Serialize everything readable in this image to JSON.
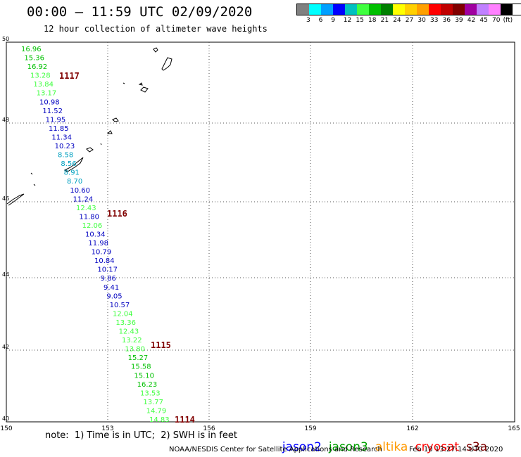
{
  "header": {
    "title": "00:00 – 11:59 UTC 02/09/2020",
    "subtitle": "12 hour collection of altimeter wave heights"
  },
  "legend": {
    "colors": [
      "#808080",
      "#00ffff",
      "#00a0ff",
      "#0000ff",
      "#00c0c0",
      "#40ff40",
      "#00c000",
      "#008000",
      "#ffff00",
      "#ffd000",
      "#ffa000",
      "#ff0000",
      "#c00000",
      "#800000",
      "#a000a0",
      "#c080ff",
      "#ff80ff",
      "#000000"
    ],
    "labels": [
      "3",
      "6",
      "9",
      "12",
      "15",
      "18",
      "21",
      "24",
      "27",
      "30",
      "33",
      "36",
      "39",
      "42",
      "45",
      "70",
      "(ft)"
    ]
  },
  "map": {
    "lon_ticks": [
      "150",
      "153",
      "156",
      "159",
      "162",
      "165"
    ],
    "lat_ticks": [
      "50",
      "48",
      "46",
      "44",
      "42",
      "40"
    ],
    "track_labels": [
      "1117",
      "1116",
      "1115",
      "1114"
    ],
    "wave_heights": [
      {
        "v": "16.96",
        "c": "#00c000"
      },
      {
        "v": "15.36",
        "c": "#00c000"
      },
      {
        "v": "16.92",
        "c": "#00c000"
      },
      {
        "v": "13.28",
        "c": "#40ff40"
      },
      {
        "v": "13.84",
        "c": "#40ff40"
      },
      {
        "v": "13.17",
        "c": "#40ff40"
      },
      {
        "v": "10.98",
        "c": "#0000c0"
      },
      {
        "v": "11.52",
        "c": "#0000c0"
      },
      {
        "v": "11.95",
        "c": "#0000c0"
      },
      {
        "v": "11.85",
        "c": "#0000c0"
      },
      {
        "v": "11.34",
        "c": "#0000c0"
      },
      {
        "v": "10.23",
        "c": "#0000c0"
      },
      {
        "v": "8.58",
        "c": "#00a0c0"
      },
      {
        "v": "8.56",
        "c": "#00a0c0"
      },
      {
        "v": "8.91",
        "c": "#00a0c0"
      },
      {
        "v": "8.70",
        "c": "#00a0c0"
      },
      {
        "v": "10.60",
        "c": "#0000c0"
      },
      {
        "v": "11.24",
        "c": "#0000c0"
      },
      {
        "v": "12.43",
        "c": "#40ff40"
      },
      {
        "v": "11.80",
        "c": "#0000c0"
      },
      {
        "v": "12.06",
        "c": "#40ff40"
      },
      {
        "v": "10.34",
        "c": "#0000c0"
      },
      {
        "v": "11.98",
        "c": "#0000c0"
      },
      {
        "v": "10.79",
        "c": "#0000c0"
      },
      {
        "v": "10.84",
        "c": "#0000c0"
      },
      {
        "v": "10.17",
        "c": "#0000c0"
      },
      {
        "v": "9.86",
        "c": "#0000c0"
      },
      {
        "v": "9.41",
        "c": "#0000c0"
      },
      {
        "v": "9.05",
        "c": "#0000c0"
      },
      {
        "v": "10.57",
        "c": "#0000c0"
      },
      {
        "v": "12.04",
        "c": "#40ff40"
      },
      {
        "v": "13.36",
        "c": "#40ff40"
      },
      {
        "v": "12.43",
        "c": "#40ff40"
      },
      {
        "v": "13.22",
        "c": "#40ff40"
      },
      {
        "v": "13.80",
        "c": "#40ff40"
      },
      {
        "v": "15.27",
        "c": "#00c000"
      },
      {
        "v": "15.58",
        "c": "#00c000"
      },
      {
        "v": "15.10",
        "c": "#00c000"
      },
      {
        "v": "16.23",
        "c": "#00c000"
      },
      {
        "v": "13.53",
        "c": "#40ff40"
      },
      {
        "v": "13.77",
        "c": "#40ff40"
      },
      {
        "v": "14.79",
        "c": "#40ff40"
      },
      {
        "v": "14.83",
        "c": "#40ff40"
      }
    ]
  },
  "footer": {
    "note": "note:  1) Time is in UTC;  2) SWH is in feet",
    "satellites": [
      {
        "name": "jason2",
        "color": "#0000ff"
      },
      {
        "name": "jason3",
        "color": "#00a000"
      },
      {
        "name": "altika",
        "color": "#ff9900"
      },
      {
        "name": "cryosat",
        "color": "#ff0000"
      },
      {
        "name": "s3a",
        "color": "#800000"
      }
    ],
    "credit": "NOAA/NESDIS Center for Satellite Applications and Research",
    "timestamp": "Feb 10 13:27:14 UTC 2020"
  }
}
